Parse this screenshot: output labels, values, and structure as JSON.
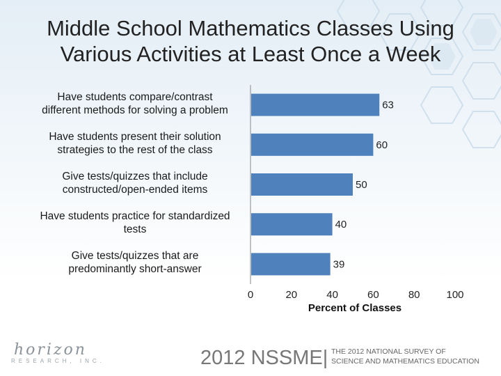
{
  "title_lines": [
    "Middle School Mathematics Classes Using",
    "Various Activities at Least Once a Week"
  ],
  "chart_data": {
    "type": "bar",
    "orientation": "horizontal",
    "categories": [
      [
        "Have students compare/contrast",
        "different methods for solving a problem"
      ],
      [
        "Have students present their solution",
        "strategies to the rest of the class"
      ],
      [
        "Give tests/quizzes that include",
        "constructed/open-ended items"
      ],
      [
        "Have students practice for standardized",
        "tests"
      ],
      [
        "Give tests/quizzes that are",
        "predominantly short-answer"
      ]
    ],
    "values": [
      63,
      60,
      50,
      40,
      39
    ],
    "xlabel": "Percent of Classes",
    "xlim": [
      0,
      100
    ],
    "xticks": [
      0,
      20,
      40,
      60,
      80,
      100
    ],
    "grid": false,
    "bar_color": "#4f81bd"
  },
  "footer": {
    "logo_script": "horizon",
    "logo_sub": "RESEARCH, INC.",
    "survey_year": "2012 NSSME|",
    "survey_desc": [
      "THE 2012 NATIONAL SURVEY OF",
      "SCIENCE AND MATHEMATICS EDUCATION"
    ]
  }
}
